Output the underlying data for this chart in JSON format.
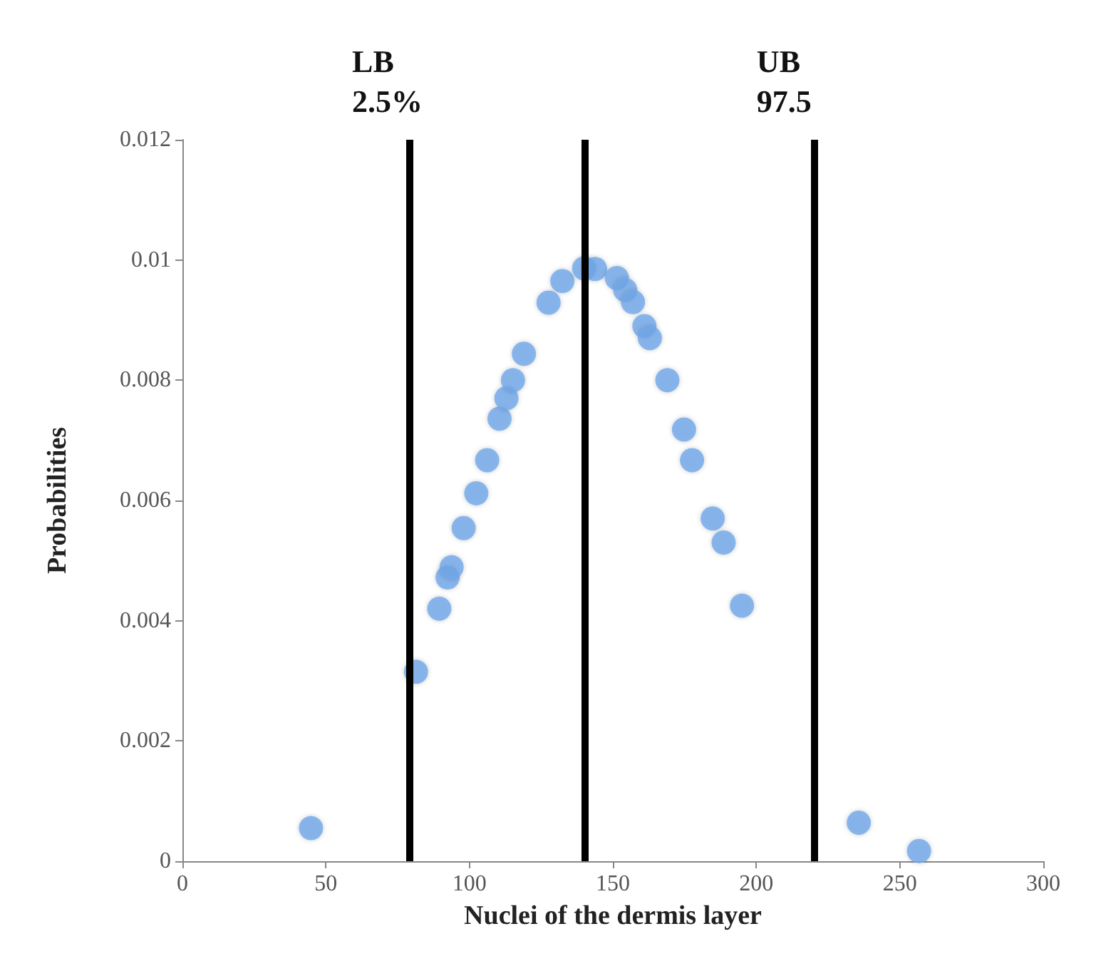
{
  "chart_data": {
    "type": "scatter",
    "xlabel": "Nuclei of the dermis layer",
    "ylabel": "Probabilities",
    "x": [
      44.8,
      81.4,
      89.5,
      92.4,
      93.8,
      98,
      102.4,
      106.2,
      110.5,
      112.9,
      115.2,
      119,
      127.6,
      132.4,
      140,
      143.8,
      151.4,
      154.3,
      157,
      161,
      162.9,
      169,
      174.8,
      177.6,
      184.8,
      188.6,
      195,
      235.7,
      256.7
    ],
    "series": [
      {
        "color": "#6fa8ea",
        "values": [
          0.00055,
          0.00315,
          0.0042,
          0.00472,
          0.00489,
          0.00554,
          0.00612,
          0.00667,
          0.00736,
          0.0077,
          0.008,
          0.00844,
          0.00929,
          0.00965,
          0.00986,
          0.00985,
          0.0097,
          0.0095,
          0.0093,
          0.0089,
          0.0087,
          0.008,
          0.00718,
          0.00667,
          0.0057,
          0.0053,
          0.00425,
          0.00064,
          0.00017
        ]
      }
    ],
    "xlim": [
      0,
      300
    ],
    "xticks": [
      0,
      50,
      100,
      150,
      200,
      250,
      300
    ],
    "ylim": [
      0,
      0.012
    ],
    "yticks": [
      0,
      0.002,
      0.004,
      0.006,
      0.008,
      0.01,
      0.012
    ],
    "ref_lines": [
      {
        "axis": "x",
        "value": 79,
        "label": "LB\n2.5%",
        "color": "#000000"
      },
      {
        "axis": "x",
        "value": 140,
        "label": null,
        "color": "#000000"
      },
      {
        "axis": "x",
        "value": 220,
        "label": "UB\n97.5",
        "color": "#000000"
      }
    ],
    "grid": false,
    "marker": "circle"
  }
}
